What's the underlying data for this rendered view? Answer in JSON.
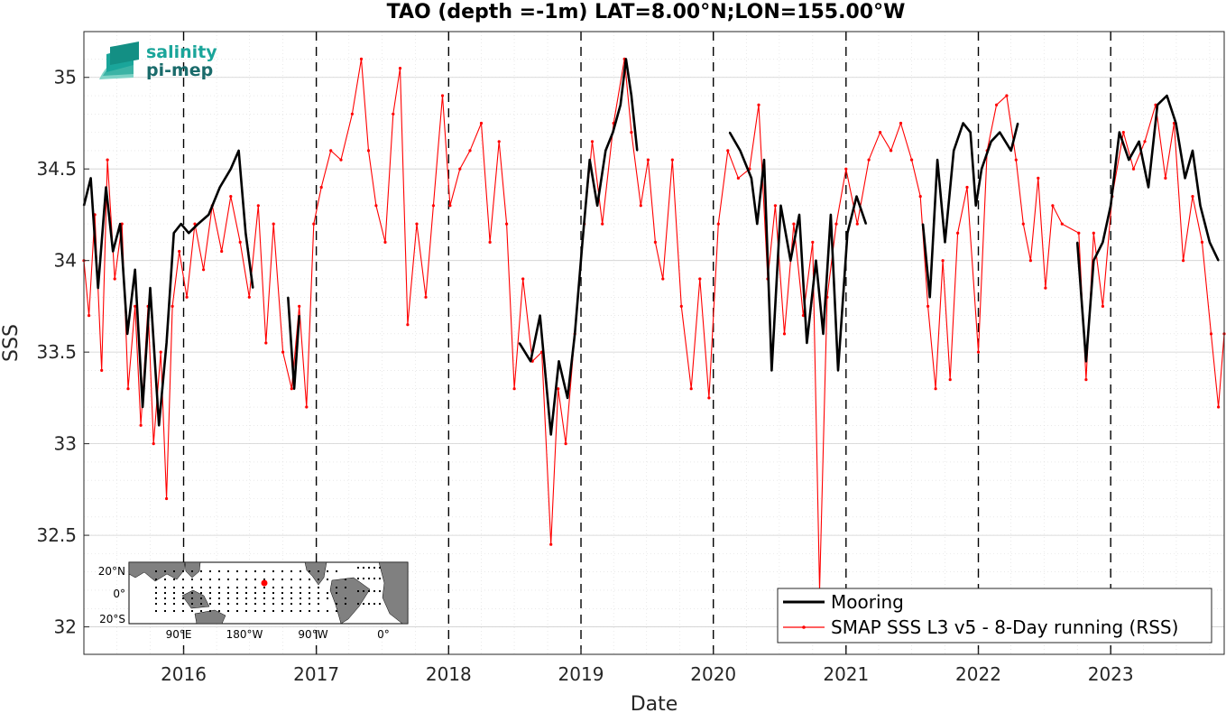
{
  "chart_data": {
    "type": "line",
    "title": "TAO (depth =-1m) LAT=8.00°N;LON=155.00°W",
    "xlabel": "Date",
    "ylabel": "SSS",
    "xlim": [
      "2015-04-01",
      "2023-11-10"
    ],
    "ylim": [
      31.85,
      35.25
    ],
    "x_ticks": [
      "2016",
      "2017",
      "2018",
      "2019",
      "2020",
      "2021",
      "2022",
      "2023"
    ],
    "y_ticks": [
      "32",
      "32.5",
      "33",
      "33.5",
      "34",
      "34.5",
      "35"
    ],
    "grid": true,
    "minor_grid": true,
    "year_dividers": "dashed black vertical lines at each year start",
    "legend_position": "bottom-right",
    "series": [
      {
        "name": "Mooring",
        "color": "#000000",
        "style": "thick solid line",
        "points": [
          [
            "2015-04-01",
            34.3
          ],
          [
            "2015-04-20",
            34.45
          ],
          [
            "2015-05-10",
            33.85
          ],
          [
            "2015-06-01",
            34.4
          ],
          [
            "2015-06-20",
            34.05
          ],
          [
            "2015-07-10",
            34.2
          ],
          [
            "2015-07-30",
            33.6
          ],
          [
            "2015-08-20",
            33.95
          ],
          [
            "2015-09-10",
            33.2
          ],
          [
            "2015-10-01",
            33.85
          ],
          [
            "2015-10-25",
            33.1
          ],
          [
            "2015-11-15",
            33.55
          ],
          [
            "2015-12-05",
            34.15
          ],
          [
            "2015-12-25",
            34.2
          ],
          [
            "2016-01-15",
            34.15
          ],
          [
            "2016-02-10",
            34.2
          ],
          [
            "2016-03-10",
            34.25
          ],
          [
            "2016-04-10",
            34.4
          ],
          [
            "2016-05-10",
            34.5
          ],
          [
            "2016-06-01",
            34.6
          ],
          [
            "2016-06-20",
            34.15
          ],
          [
            "2016-07-10",
            33.85
          ],
          [
            "2016-10-15",
            33.8
          ],
          [
            "2016-11-01",
            33.3
          ],
          [
            "2016-11-15",
            33.7
          ],
          [
            "2018-07-15",
            33.55
          ],
          [
            "2018-08-15",
            33.45
          ],
          [
            "2018-09-10",
            33.7
          ],
          [
            "2018-10-10",
            33.05
          ],
          [
            "2018-11-01",
            33.45
          ],
          [
            "2018-11-25",
            33.25
          ],
          [
            "2018-12-15",
            33.6
          ],
          [
            "2019-01-05",
            34.1
          ],
          [
            "2019-01-25",
            34.55
          ],
          [
            "2019-02-15",
            34.3
          ],
          [
            "2019-03-10",
            34.6
          ],
          [
            "2019-03-30",
            34.7
          ],
          [
            "2019-04-20",
            34.85
          ],
          [
            "2019-05-05",
            35.1
          ],
          [
            "2019-05-20",
            34.9
          ],
          [
            "2019-06-05",
            34.6
          ],
          [
            "2020-02-15",
            34.7
          ],
          [
            "2020-03-15",
            34.6
          ],
          [
            "2020-04-15",
            34.45
          ],
          [
            "2020-05-01",
            34.2
          ],
          [
            "2020-05-20",
            34.55
          ],
          [
            "2020-06-10",
            33.4
          ],
          [
            "2020-07-05",
            34.3
          ],
          [
            "2020-08-01",
            34.0
          ],
          [
            "2020-08-25",
            34.25
          ],
          [
            "2020-09-15",
            33.55
          ],
          [
            "2020-10-10",
            34.0
          ],
          [
            "2020-10-30",
            33.6
          ],
          [
            "2020-11-20",
            34.25
          ],
          [
            "2020-12-10",
            33.4
          ],
          [
            "2021-01-05",
            34.15
          ],
          [
            "2021-01-30",
            34.35
          ],
          [
            "2021-02-25",
            34.2
          ],
          [
            "2021-08-01",
            34.2
          ],
          [
            "2021-08-20",
            33.8
          ],
          [
            "2021-09-10",
            34.55
          ],
          [
            "2021-10-01",
            34.1
          ],
          [
            "2021-10-25",
            34.6
          ],
          [
            "2021-11-20",
            34.75
          ],
          [
            "2021-12-10",
            34.7
          ],
          [
            "2021-12-25",
            34.3
          ],
          [
            "2022-01-10",
            34.5
          ],
          [
            "2022-02-05",
            34.65
          ],
          [
            "2022-03-01",
            34.7
          ],
          [
            "2022-04-01",
            34.6
          ],
          [
            "2022-04-20",
            34.75
          ],
          [
            "2022-10-01",
            34.1
          ],
          [
            "2022-10-25",
            33.45
          ],
          [
            "2022-11-15",
            34.0
          ],
          [
            "2022-12-10",
            34.1
          ],
          [
            "2023-01-01",
            34.3
          ],
          [
            "2023-01-25",
            34.7
          ],
          [
            "2023-02-20",
            34.55
          ],
          [
            "2023-03-20",
            34.65
          ],
          [
            "2023-04-15",
            34.4
          ],
          [
            "2023-05-10",
            34.85
          ],
          [
            "2023-06-05",
            34.9
          ],
          [
            "2023-06-30",
            34.75
          ],
          [
            "2023-07-25",
            34.45
          ],
          [
            "2023-08-15",
            34.6
          ],
          [
            "2023-09-05",
            34.3
          ],
          [
            "2023-10-01",
            34.1
          ],
          [
            "2023-10-25",
            34.0
          ]
        ]
      },
      {
        "name": "SMAP SSS L3 v5 - 8-Day running (RSS)",
        "color": "#ff0000",
        "style": "thin line with point markers",
        "points": [
          [
            "2015-04-01",
            34.0
          ],
          [
            "2015-04-15",
            33.7
          ],
          [
            "2015-05-01",
            34.25
          ],
          [
            "2015-05-20",
            33.4
          ],
          [
            "2015-06-05",
            34.55
          ],
          [
            "2015-06-25",
            33.9
          ],
          [
            "2015-07-15",
            34.2
          ],
          [
            "2015-08-01",
            33.3
          ],
          [
            "2015-08-20",
            33.75
          ],
          [
            "2015-09-05",
            33.1
          ],
          [
            "2015-09-25",
            33.75
          ],
          [
            "2015-10-10",
            33.0
          ],
          [
            "2015-10-30",
            33.5
          ],
          [
            "2015-11-15",
            32.7
          ],
          [
            "2015-12-01",
            33.75
          ],
          [
            "2015-12-20",
            34.05
          ],
          [
            "2016-01-10",
            33.8
          ],
          [
            "2016-02-01",
            34.2
          ],
          [
            "2016-02-25",
            33.95
          ],
          [
            "2016-03-20",
            34.3
          ],
          [
            "2016-04-15",
            34.05
          ],
          [
            "2016-05-10",
            34.35
          ],
          [
            "2016-06-05",
            34.1
          ],
          [
            "2016-06-30",
            33.8
          ],
          [
            "2016-07-25",
            34.3
          ],
          [
            "2016-08-15",
            33.55
          ],
          [
            "2016-09-05",
            34.2
          ],
          [
            "2016-10-01",
            33.5
          ],
          [
            "2016-10-25",
            33.3
          ],
          [
            "2016-11-15",
            33.75
          ],
          [
            "2016-12-05",
            33.2
          ],
          [
            "2016-12-25",
            34.2
          ],
          [
            "2017-01-15",
            34.4
          ],
          [
            "2017-02-10",
            34.6
          ],
          [
            "2017-03-10",
            34.55
          ],
          [
            "2017-04-10",
            34.8
          ],
          [
            "2017-05-05",
            35.1
          ],
          [
            "2017-05-25",
            34.6
          ],
          [
            "2017-06-15",
            34.3
          ],
          [
            "2017-07-10",
            34.1
          ],
          [
            "2017-08-01",
            34.8
          ],
          [
            "2017-08-20",
            35.05
          ],
          [
            "2017-09-10",
            33.65
          ],
          [
            "2017-10-05",
            34.2
          ],
          [
            "2017-10-30",
            33.8
          ],
          [
            "2017-11-20",
            34.3
          ],
          [
            "2017-12-15",
            34.9
          ],
          [
            "2018-01-05",
            34.3
          ],
          [
            "2018-02-01",
            34.5
          ],
          [
            "2018-03-01",
            34.6
          ],
          [
            "2018-04-01",
            34.75
          ],
          [
            "2018-04-25",
            34.1
          ],
          [
            "2018-05-20",
            34.65
          ],
          [
            "2018-06-10",
            34.2
          ],
          [
            "2018-07-01",
            33.3
          ],
          [
            "2018-07-25",
            33.9
          ],
          [
            "2018-08-20",
            33.45
          ],
          [
            "2018-09-15",
            33.5
          ],
          [
            "2018-10-10",
            32.45
          ],
          [
            "2018-10-30",
            33.3
          ],
          [
            "2018-11-20",
            33.0
          ],
          [
            "2018-12-15",
            33.6
          ],
          [
            "2019-01-10",
            34.2
          ],
          [
            "2019-02-01",
            34.65
          ],
          [
            "2019-03-01",
            34.2
          ],
          [
            "2019-04-01",
            34.75
          ],
          [
            "2019-05-01",
            35.1
          ],
          [
            "2019-05-20",
            34.7
          ],
          [
            "2019-06-15",
            34.3
          ],
          [
            "2019-07-05",
            34.55
          ],
          [
            "2019-07-25",
            34.1
          ],
          [
            "2019-08-15",
            33.9
          ],
          [
            "2019-09-10",
            34.55
          ],
          [
            "2019-10-05",
            33.75
          ],
          [
            "2019-11-01",
            33.3
          ],
          [
            "2019-11-25",
            33.9
          ],
          [
            "2019-12-20",
            33.25
          ],
          [
            "2020-01-15",
            34.2
          ],
          [
            "2020-02-10",
            34.6
          ],
          [
            "2020-03-10",
            34.45
          ],
          [
            "2020-04-10",
            34.5
          ],
          [
            "2020-05-05",
            34.85
          ],
          [
            "2020-05-30",
            33.9
          ],
          [
            "2020-06-20",
            34.3
          ],
          [
            "2020-07-15",
            33.6
          ],
          [
            "2020-08-10",
            34.2
          ],
          [
            "2020-09-05",
            33.7
          ],
          [
            "2020-10-01",
            34.1
          ],
          [
            "2020-10-20",
            32.2
          ],
          [
            "2020-11-10",
            33.8
          ],
          [
            "2020-12-05",
            34.2
          ],
          [
            "2021-01-01",
            34.5
          ],
          [
            "2021-02-01",
            34.2
          ],
          [
            "2021-03-05",
            34.55
          ],
          [
            "2021-04-05",
            34.7
          ],
          [
            "2021-05-05",
            34.6
          ],
          [
            "2021-06-01",
            34.75
          ],
          [
            "2021-07-01",
            34.55
          ],
          [
            "2021-07-25",
            34.35
          ],
          [
            "2021-08-15",
            33.75
          ],
          [
            "2021-09-05",
            33.3
          ],
          [
            "2021-09-25",
            34.0
          ],
          [
            "2021-10-15",
            33.35
          ],
          [
            "2021-11-05",
            34.15
          ],
          [
            "2021-12-01",
            34.4
          ],
          [
            "2022-01-01",
            33.5
          ],
          [
            "2022-01-25",
            34.6
          ],
          [
            "2022-02-20",
            34.85
          ],
          [
            "2022-03-20",
            34.9
          ],
          [
            "2022-04-15",
            34.55
          ],
          [
            "2022-05-05",
            34.2
          ],
          [
            "2022-05-25",
            34.0
          ],
          [
            "2022-06-15",
            34.45
          ],
          [
            "2022-07-05",
            33.85
          ],
          [
            "2022-07-25",
            34.3
          ],
          [
            "2022-08-20",
            34.2
          ],
          [
            "2022-10-05",
            34.15
          ],
          [
            "2022-10-25",
            33.35
          ],
          [
            "2022-11-15",
            34.15
          ],
          [
            "2022-12-10",
            33.75
          ],
          [
            "2023-01-05",
            34.35
          ],
          [
            "2023-02-05",
            34.7
          ],
          [
            "2023-03-05",
            34.5
          ],
          [
            "2023-04-05",
            34.65
          ],
          [
            "2023-05-05",
            34.85
          ],
          [
            "2023-06-01",
            34.45
          ],
          [
            "2023-06-25",
            34.75
          ],
          [
            "2023-07-20",
            34.0
          ],
          [
            "2023-08-15",
            34.35
          ],
          [
            "2023-09-10",
            34.1
          ],
          [
            "2023-10-05",
            33.6
          ],
          [
            "2023-10-25",
            33.2
          ],
          [
            "2023-11-10",
            33.6
          ]
        ]
      }
    ]
  },
  "logo": {
    "line1": "salinity",
    "line2": "pi-mep",
    "color_line1": "#1aa59a",
    "color_line2": "#1a6b6b"
  },
  "inset_map": {
    "lat_labels": [
      "20°N",
      "0°",
      "20°S"
    ],
    "lon_labels": [
      "90°E",
      "180°W",
      "90°W",
      "0°"
    ],
    "marker_color": "#ff0000",
    "land_color": "#808080",
    "ocean_color": "#ffffff"
  }
}
